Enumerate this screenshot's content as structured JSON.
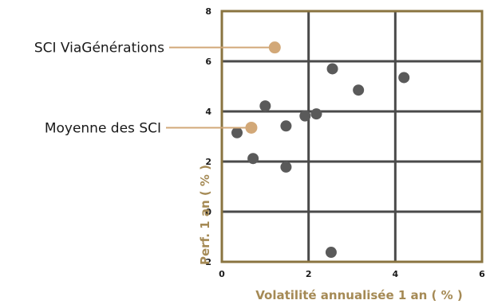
{
  "chart_data": {
    "type": "scatter",
    "xlabel": "Volatilité annualisée 1 an ( % )",
    "ylabel": "Perf. 1 an ( % )",
    "xlim": [
      0,
      6
    ],
    "ylim": [
      -2,
      8
    ],
    "x_ticks": [
      "0",
      "2",
      "4",
      "6"
    ],
    "y_ticks": [
      "-2",
      "0",
      "2",
      "4",
      "6",
      "8"
    ],
    "grid": true,
    "colors": {
      "frame": "#8a7440",
      "grid": "#4a4a4a",
      "points": "#5a5a5a",
      "highlight": "#d2a878",
      "axis_title": "#a58a55"
    },
    "series": [
      {
        "points": [
          {
            "x": 0.35,
            "y": 3.15
          },
          {
            "x": 0.72,
            "y": 2.12
          },
          {
            "x": 1.0,
            "y": 4.22
          },
          {
            "x": 1.48,
            "y": 3.42
          },
          {
            "x": 1.48,
            "y": 1.78
          },
          {
            "x": 1.92,
            "y": 3.82
          },
          {
            "x": 2.18,
            "y": 3.9
          },
          {
            "x": 2.55,
            "y": 5.7
          },
          {
            "x": 3.15,
            "y": 4.85
          },
          {
            "x": 4.2,
            "y": 5.35
          },
          {
            "x": 2.52,
            "y": -1.62
          }
        ]
      }
    ],
    "highlights": [
      {
        "label": "SCI ViaGénérations",
        "x": 1.22,
        "y": 6.55
      },
      {
        "label": "Moyenne des SCI",
        "x": 0.68,
        "y": 3.35
      }
    ]
  }
}
